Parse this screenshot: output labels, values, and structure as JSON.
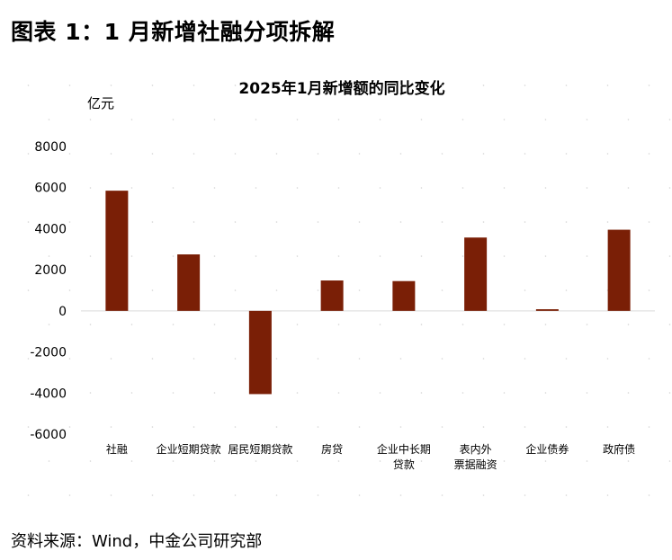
{
  "figure": {
    "title": "图表 1：1 月新增社融分项拆解",
    "source": "资料来源：Wind，中金公司研究部"
  },
  "colors": {
    "bar": "#7a1f06",
    "zero_line": "#d9d9d9"
  },
  "chart_data": {
    "type": "bar",
    "title": "2025年1月新增额的同比变化",
    "ylabel": "亿元",
    "xlabel": "",
    "ylim": [
      -6000,
      8000
    ],
    "yticks": [
      8000,
      6000,
      4000,
      2000,
      0,
      -2000,
      -4000,
      -6000
    ],
    "grid": false,
    "legend": "none",
    "categories": [
      [
        "社融"
      ],
      [
        "企业短期贷款"
      ],
      [
        "居民短期贷款"
      ],
      [
        "房贷"
      ],
      [
        "企业中长期",
        "贷款"
      ],
      [
        "表内外",
        "票据融资"
      ],
      [
        "企业债券"
      ],
      [
        "政府债"
      ]
    ],
    "values": [
      5850,
      2750,
      -4050,
      1480,
      1450,
      3570,
      80,
      3950
    ]
  }
}
